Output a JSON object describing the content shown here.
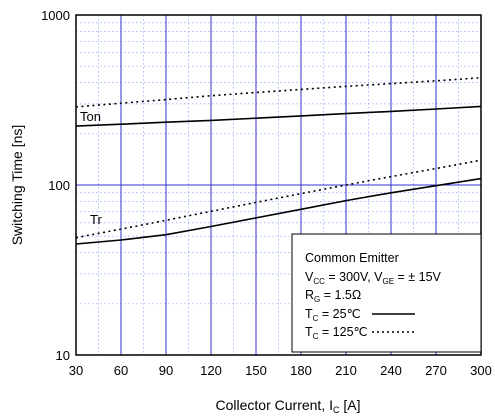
{
  "chart_data": {
    "type": "line",
    "xlabel": "Collector Current, I",
    "xlabel_sub": "C",
    "xlabel_unit": " [A]",
    "ylabel": "Switching Time [ns]",
    "xlim": [
      30,
      300
    ],
    "ylim": [
      10,
      1000
    ],
    "y_scale": "log",
    "x_ticks": [
      "30",
      "60",
      "90",
      "120",
      "150",
      "180",
      "210",
      "240",
      "270",
      "300"
    ],
    "y_ticks": [
      "10",
      "100",
      "1000"
    ],
    "grid": true,
    "major_grid_color": "#3333cc",
    "minor_grid_color": "#8aa0ff",
    "series": [
      {
        "name": "Ton",
        "tc": "25",
        "style": "solid",
        "x": [
          30,
          60,
          90,
          120,
          150,
          180,
          210,
          240,
          270,
          300
        ],
        "y": [
          222,
          228,
          234,
          240,
          247,
          255,
          263,
          271,
          280,
          290
        ]
      },
      {
        "name": "Ton",
        "tc": "125",
        "style": "dotted",
        "x": [
          30,
          60,
          90,
          120,
          150,
          180,
          210,
          240,
          270,
          300
        ],
        "y": [
          288,
          303,
          318,
          335,
          350,
          365,
          380,
          395,
          410,
          428
        ]
      },
      {
        "name": "Tr",
        "tc": "25",
        "style": "solid",
        "x": [
          30,
          60,
          90,
          120,
          150,
          180,
          210,
          240,
          270,
          300
        ],
        "y": [
          45,
          47.5,
          51,
          57,
          64,
          72,
          81,
          90,
          99,
          109
        ]
      },
      {
        "name": "Tr",
        "tc": "125",
        "style": "dotted",
        "x": [
          30,
          60,
          90,
          120,
          150,
          180,
          210,
          240,
          270,
          300
        ],
        "y": [
          49,
          55,
          62,
          70,
          79,
          89,
          100,
          112,
          125,
          140
        ]
      }
    ],
    "curve_labels": [
      {
        "text": "Ton"
      },
      {
        "text": "Tr"
      }
    ],
    "legend": {
      "placement": "bottom-right",
      "line1": "Common Emitter",
      "vcc_label": "V",
      "vcc_sub": "CC",
      "vcc_value": " = 300V, V",
      "vge_sub": "GE",
      "vge_value": " = ± 15V",
      "rg_label": "R",
      "rg_sub": "G",
      "rg_value": " = 1.5Ω",
      "tc_label": "T",
      "tc_sub": "C",
      "tc1_value": " =   25℃",
      "tc2_value": " = 125℃"
    }
  }
}
